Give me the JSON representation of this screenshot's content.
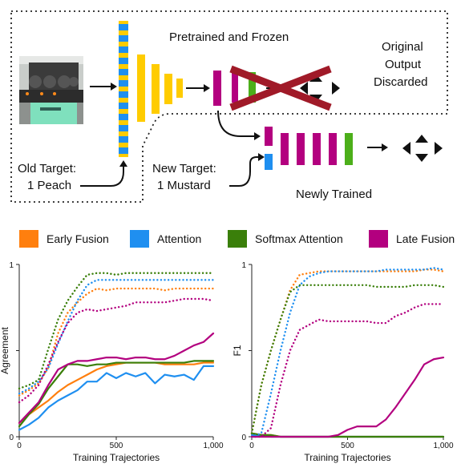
{
  "diagram": {
    "pretrained_label": "Pretrained and Frozen",
    "original_output_label": [
      "Original",
      "Output",
      "Discarded"
    ],
    "old_target_label": [
      "Old Target:",
      "1 Peach"
    ],
    "new_target_label": [
      "New Target:",
      "1 Mustard"
    ],
    "newly_trained_label": "Newly Trained"
  },
  "legend": [
    {
      "label": "Early Fusion",
      "color": "#ff7f0e"
    },
    {
      "label": "Attention",
      "color": "#1f8ff0"
    },
    {
      "label": "Softmax Attention",
      "color": "#3a7f0a"
    },
    {
      "label": "Late Fusion",
      "color": "#b3007f"
    }
  ],
  "chart_data": [
    {
      "type": "line",
      "ylabel": "Agreement",
      "xlabel": "Training Trajectories",
      "xlim": [
        0,
        1000
      ],
      "ylim": [
        0,
        1
      ],
      "xticks": [
        "0",
        "500",
        "1,000"
      ],
      "yticks": [
        "0",
        "1"
      ],
      "x": [
        0,
        50,
        100,
        150,
        200,
        250,
        300,
        350,
        400,
        450,
        500,
        550,
        600,
        650,
        700,
        750,
        800,
        850,
        900,
        950,
        1000
      ],
      "series": [
        {
          "name": "Early Fusion",
          "style": "solid",
          "values": [
            0.08,
            0.13,
            0.17,
            0.21,
            0.26,
            0.3,
            0.33,
            0.36,
            0.39,
            0.41,
            0.42,
            0.43,
            0.43,
            0.43,
            0.43,
            0.42,
            0.42,
            0.42,
            0.42,
            0.43,
            0.43
          ]
        },
        {
          "name": "Attention",
          "style": "solid",
          "values": [
            0.04,
            0.07,
            0.11,
            0.17,
            0.21,
            0.24,
            0.27,
            0.32,
            0.32,
            0.37,
            0.34,
            0.37,
            0.35,
            0.37,
            0.31,
            0.36,
            0.35,
            0.36,
            0.33,
            0.41,
            0.41
          ]
        },
        {
          "name": "Softmax Attention",
          "style": "solid",
          "values": [
            0.06,
            0.13,
            0.19,
            0.28,
            0.35,
            0.42,
            0.42,
            0.41,
            0.42,
            0.42,
            0.43,
            0.43,
            0.43,
            0.43,
            0.43,
            0.43,
            0.43,
            0.43,
            0.44,
            0.44,
            0.44
          ]
        },
        {
          "name": "Late Fusion",
          "style": "solid",
          "values": [
            0.08,
            0.14,
            0.2,
            0.3,
            0.39,
            0.42,
            0.44,
            0.44,
            0.45,
            0.46,
            0.46,
            0.45,
            0.46,
            0.46,
            0.45,
            0.45,
            0.47,
            0.5,
            0.53,
            0.55,
            0.6
          ]
        },
        {
          "name": "Early Fusion",
          "style": "dotted",
          "values": [
            0.24,
            0.27,
            0.31,
            0.4,
            0.6,
            0.72,
            0.78,
            0.83,
            0.86,
            0.85,
            0.86,
            0.86,
            0.86,
            0.86,
            0.86,
            0.85,
            0.86,
            0.86,
            0.86,
            0.86,
            0.86
          ]
        },
        {
          "name": "Attention",
          "style": "dotted",
          "values": [
            0.25,
            0.28,
            0.32,
            0.4,
            0.54,
            0.67,
            0.79,
            0.88,
            0.91,
            0.91,
            0.91,
            0.91,
            0.91,
            0.91,
            0.91,
            0.91,
            0.91,
            0.91,
            0.91,
            0.91,
            0.91
          ]
        },
        {
          "name": "Softmax Attention",
          "style": "dotted",
          "values": [
            0.28,
            0.3,
            0.33,
            0.51,
            0.68,
            0.79,
            0.87,
            0.94,
            0.95,
            0.95,
            0.94,
            0.95,
            0.95,
            0.95,
            0.95,
            0.95,
            0.95,
            0.95,
            0.95,
            0.95,
            0.95
          ]
        },
        {
          "name": "Late Fusion",
          "style": "dotted",
          "values": [
            0.2,
            0.24,
            0.3,
            0.42,
            0.55,
            0.66,
            0.72,
            0.74,
            0.73,
            0.74,
            0.75,
            0.76,
            0.78,
            0.78,
            0.78,
            0.78,
            0.79,
            0.8,
            0.8,
            0.8,
            0.79
          ]
        }
      ]
    },
    {
      "type": "line",
      "ylabel": "F1",
      "xlabel": "Training Trajectories",
      "xlim": [
        0,
        1000
      ],
      "ylim": [
        0,
        1
      ],
      "xticks": [
        "0",
        "500",
        "1,000"
      ],
      "yticks": [
        "0",
        "1"
      ],
      "x": [
        0,
        50,
        100,
        150,
        200,
        250,
        300,
        350,
        400,
        450,
        500,
        550,
        600,
        650,
        700,
        750,
        800,
        850,
        900,
        950,
        1000
      ],
      "series": [
        {
          "name": "Early Fusion",
          "style": "solid",
          "values": [
            0.02,
            0.01,
            0.01,
            0,
            0,
            0,
            0,
            0,
            0,
            0,
            0,
            0,
            0,
            0,
            0,
            0,
            0,
            0,
            0,
            0,
            0
          ]
        },
        {
          "name": "Attention",
          "style": "solid",
          "values": [
            0.01,
            0.01,
            0,
            0,
            0,
            0,
            0,
            0,
            0,
            0,
            0,
            0,
            0,
            0,
            0,
            0,
            0,
            0,
            0,
            0,
            0
          ]
        },
        {
          "name": "Softmax Attention",
          "style": "solid",
          "values": [
            0.02,
            0.01,
            0.01,
            0,
            0,
            0,
            0,
            0,
            0,
            0,
            0,
            0,
            0,
            0,
            0,
            0,
            0,
            0,
            0,
            0,
            0
          ]
        },
        {
          "name": "Late Fusion",
          "style": "solid",
          "values": [
            0,
            0,
            0,
            0,
            0,
            0,
            0,
            0,
            0,
            0.01,
            0.04,
            0.06,
            0.06,
            0.06,
            0.1,
            0.17,
            0.25,
            0.33,
            0.42,
            0.45,
            0.46
          ]
        },
        {
          "name": "Early Fusion",
          "style": "dotted",
          "values": [
            0.02,
            0.3,
            0.5,
            0.68,
            0.85,
            0.94,
            0.95,
            0.96,
            0.96,
            0.96,
            0.96,
            0.96,
            0.96,
            0.96,
            0.96,
            0.96,
            0.96,
            0.96,
            0.97,
            0.97,
            0.96
          ]
        },
        {
          "name": "Attention",
          "style": "dotted",
          "values": [
            0,
            0.02,
            0.25,
            0.5,
            0.72,
            0.88,
            0.93,
            0.95,
            0.96,
            0.96,
            0.96,
            0.96,
            0.96,
            0.96,
            0.97,
            0.97,
            0.97,
            0.97,
            0.97,
            0.98,
            0.97
          ]
        },
        {
          "name": "Softmax Attention",
          "style": "dotted",
          "values": [
            0.02,
            0.3,
            0.5,
            0.68,
            0.84,
            0.88,
            0.88,
            0.88,
            0.88,
            0.88,
            0.88,
            0.88,
            0.88,
            0.87,
            0.87,
            0.87,
            0.87,
            0.88,
            0.88,
            0.88,
            0.87
          ]
        },
        {
          "name": "Late Fusion",
          "style": "dotted",
          "values": [
            0,
            0,
            0.05,
            0.3,
            0.5,
            0.62,
            0.65,
            0.68,
            0.67,
            0.67,
            0.67,
            0.67,
            0.67,
            0.66,
            0.66,
            0.7,
            0.72,
            0.75,
            0.77,
            0.77,
            0.77
          ]
        }
      ]
    }
  ]
}
